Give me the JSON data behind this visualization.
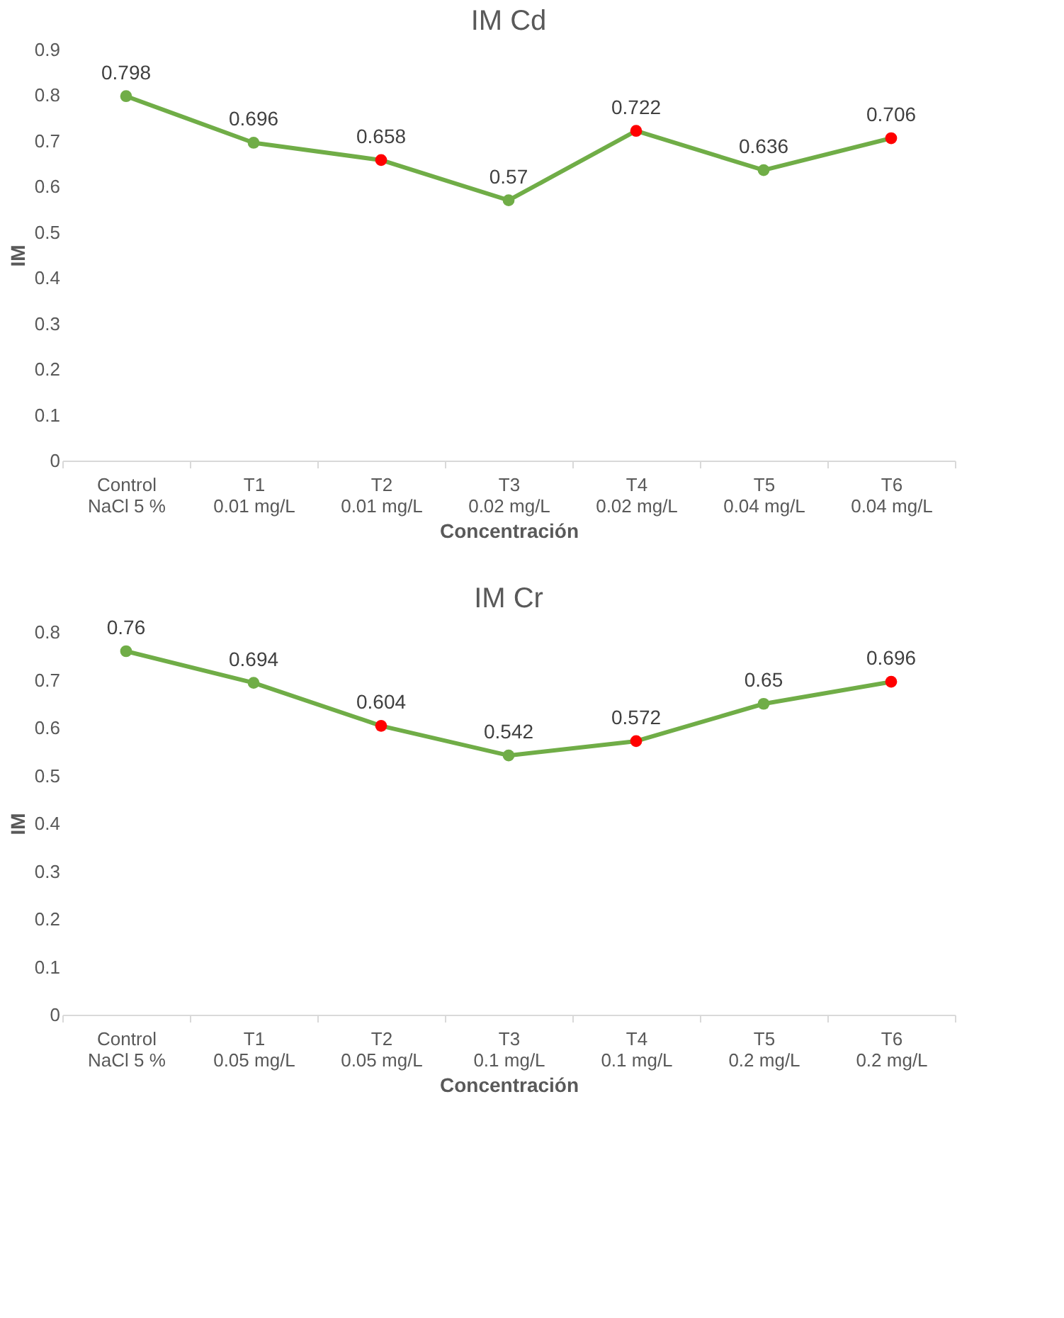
{
  "chart_data": [
    {
      "type": "line",
      "title": "IM Cd",
      "xlabel": "Concentración",
      "ylabel": "IM",
      "categories": [
        "Control\nNaCl 5 %",
        "T1\n0.01 mg/L",
        "T2\n0.01 mg/L",
        "T3\n0.02 mg/L",
        "T4\n0.02 mg/L",
        "T5\n0.04 mg/L",
        "T6\n0.04 mg/L"
      ],
      "series": [
        {
          "color": "#70ad47",
          "values": [
            0.798,
            0.696,
            0.658,
            0.57,
            0.722,
            0.636,
            0.706
          ],
          "colors": [
            "#70ad47",
            "#70ad47",
            "#ff0000",
            "#70ad47",
            "#ff0000",
            "#70ad47",
            "#ff0000"
          ]
        }
      ],
      "ylim": [
        0,
        0.9
      ],
      "yticks": [
        0,
        0.1,
        0.2,
        0.3,
        0.4,
        0.5,
        0.6,
        0.7,
        0.8,
        0.9
      ],
      "data_labels": true,
      "marker": "circle",
      "line_style": "solid",
      "grid": false,
      "legend": false
    },
    {
      "type": "line",
      "title": "IM Cr",
      "xlabel": "Concentración",
      "ylabel": "IM",
      "categories": [
        "Control\nNaCl 5 %",
        "T1\n0.05 mg/L",
        "T2\n0.05 mg/L",
        "T3\n0.1 mg/L",
        "T4\n0.1 mg/L",
        "T5\n0.2 mg/L",
        "T6\n0.2 mg/L"
      ],
      "series": [
        {
          "color": "#70ad47",
          "values": [
            0.76,
            0.694,
            0.604,
            0.542,
            0.572,
            0.65,
            0.696
          ],
          "colors": [
            "#70ad47",
            "#70ad47",
            "#ff0000",
            "#70ad47",
            "#ff0000",
            "#70ad47",
            "#ff0000"
          ]
        }
      ],
      "ylim": [
        0,
        0.8
      ],
      "yticks": [
        0,
        0.1,
        0.2,
        0.3,
        0.4,
        0.5,
        0.6,
        0.7,
        0.8
      ],
      "data_labels": true,
      "marker": "circle",
      "line_style": "solid",
      "grid": false,
      "legend": false
    }
  ]
}
